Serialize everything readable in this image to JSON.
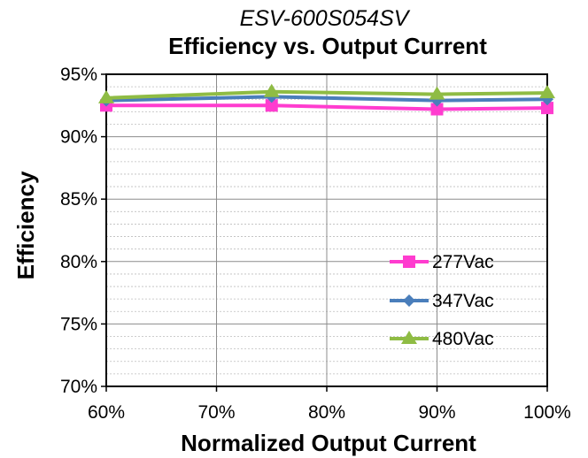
{
  "chart_data": {
    "type": "line",
    "subtitle": "ESV-600S054SV",
    "title": "Efficiency vs. Output Current",
    "xlabel": "Normalized Output Current",
    "ylabel": "Efficiency",
    "x": [
      0.6,
      0.75,
      0.9,
      1.0
    ],
    "xlim": [
      0.6,
      1.0
    ],
    "ylim": [
      0.7,
      0.95
    ],
    "xticks": [
      0.6,
      0.7,
      0.8,
      0.9,
      1.0
    ],
    "xtick_labels": [
      "60%",
      "70%",
      "80%",
      "90%",
      "100%"
    ],
    "yticks": [
      0.7,
      0.75,
      0.8,
      0.85,
      0.9,
      0.95
    ],
    "ytick_labels": [
      "70%",
      "75%",
      "80%",
      "85%",
      "90%",
      "95%"
    ],
    "grid": true,
    "legend_position": "lower-right",
    "series": [
      {
        "name": "277Vac",
        "values": [
          0.925,
          0.925,
          0.922,
          0.923
        ],
        "color": "#ff3ccf",
        "marker": "square"
      },
      {
        "name": "347Vac",
        "values": [
          0.929,
          0.932,
          0.929,
          0.93
        ],
        "color": "#4a7ebb",
        "marker": "diamond"
      },
      {
        "name": "480Vac",
        "values": [
          0.931,
          0.936,
          0.934,
          0.935
        ],
        "color": "#8fbc44",
        "marker": "triangle"
      }
    ]
  }
}
